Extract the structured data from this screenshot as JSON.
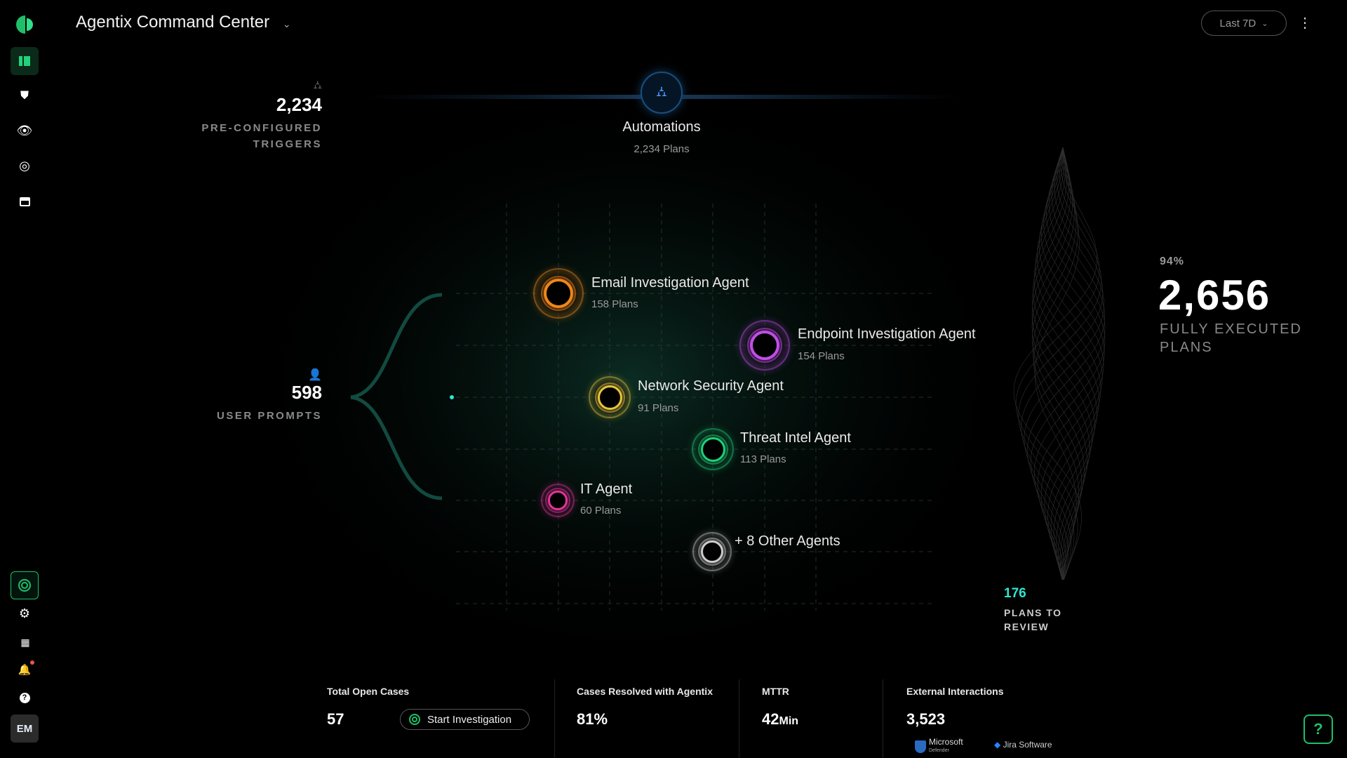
{
  "header": {
    "title": "Agentix Command Center",
    "time_range": "Last 7D"
  },
  "sidebar": {
    "nav": [
      "dashboard-icon",
      "shield-alert-icon",
      "eye-icon",
      "target-icon",
      "store-icon"
    ],
    "bottom": [
      "agentix-icon",
      "gear-icon",
      "apps-grid-icon",
      "bell-icon",
      "help-icon"
    ],
    "avatar": "EM"
  },
  "triggers": {
    "value": "2,234",
    "label1": "PRE-CONFIGURED",
    "label2": "TRIGGERS"
  },
  "prompts": {
    "value": "598",
    "label": "USER PROMPTS"
  },
  "automations": {
    "title": "Automations",
    "plans": "2,234 Plans"
  },
  "agents": [
    {
      "name": "Email Investigation Agent",
      "plans": "158 Plans",
      "color": "#f0861a"
    },
    {
      "name": "Endpoint Investigation Agent",
      "plans": "154 Plans",
      "color": "#c14ee6"
    },
    {
      "name": "Network Security Agent",
      "plans": "91 Plans",
      "color": "#e8c53a"
    },
    {
      "name": "Threat Intel Agent",
      "plans": "113 Plans",
      "color": "#1fd07a"
    },
    {
      "name": "IT Agent",
      "plans": "60 Plans",
      "color": "#e0359a"
    },
    {
      "name": "+ 8 Other Agents",
      "plans": "",
      "color": "#cccccc"
    }
  ],
  "executed": {
    "percent": "94%",
    "value": "2,656",
    "label1": "FULLY EXECUTED",
    "label2": "PLANS"
  },
  "review": {
    "value": "176",
    "label1": "PLANS TO",
    "label2": "REVIEW",
    "color": "#2ee6d0"
  },
  "bottom": {
    "open_cases": {
      "label": "Total Open Cases",
      "value": "57",
      "button": "Start Investigation"
    },
    "resolved": {
      "label": "Cases Resolved with Agentix",
      "value": "81%"
    },
    "mttr": {
      "label": "MTTR",
      "value": "42",
      "unit": "Min"
    },
    "external": {
      "label": "External Interactions",
      "value": "3,523",
      "logos": [
        "Microsoft",
        "Defender",
        "Jira Software"
      ]
    }
  },
  "accent": "#1fbf6a"
}
